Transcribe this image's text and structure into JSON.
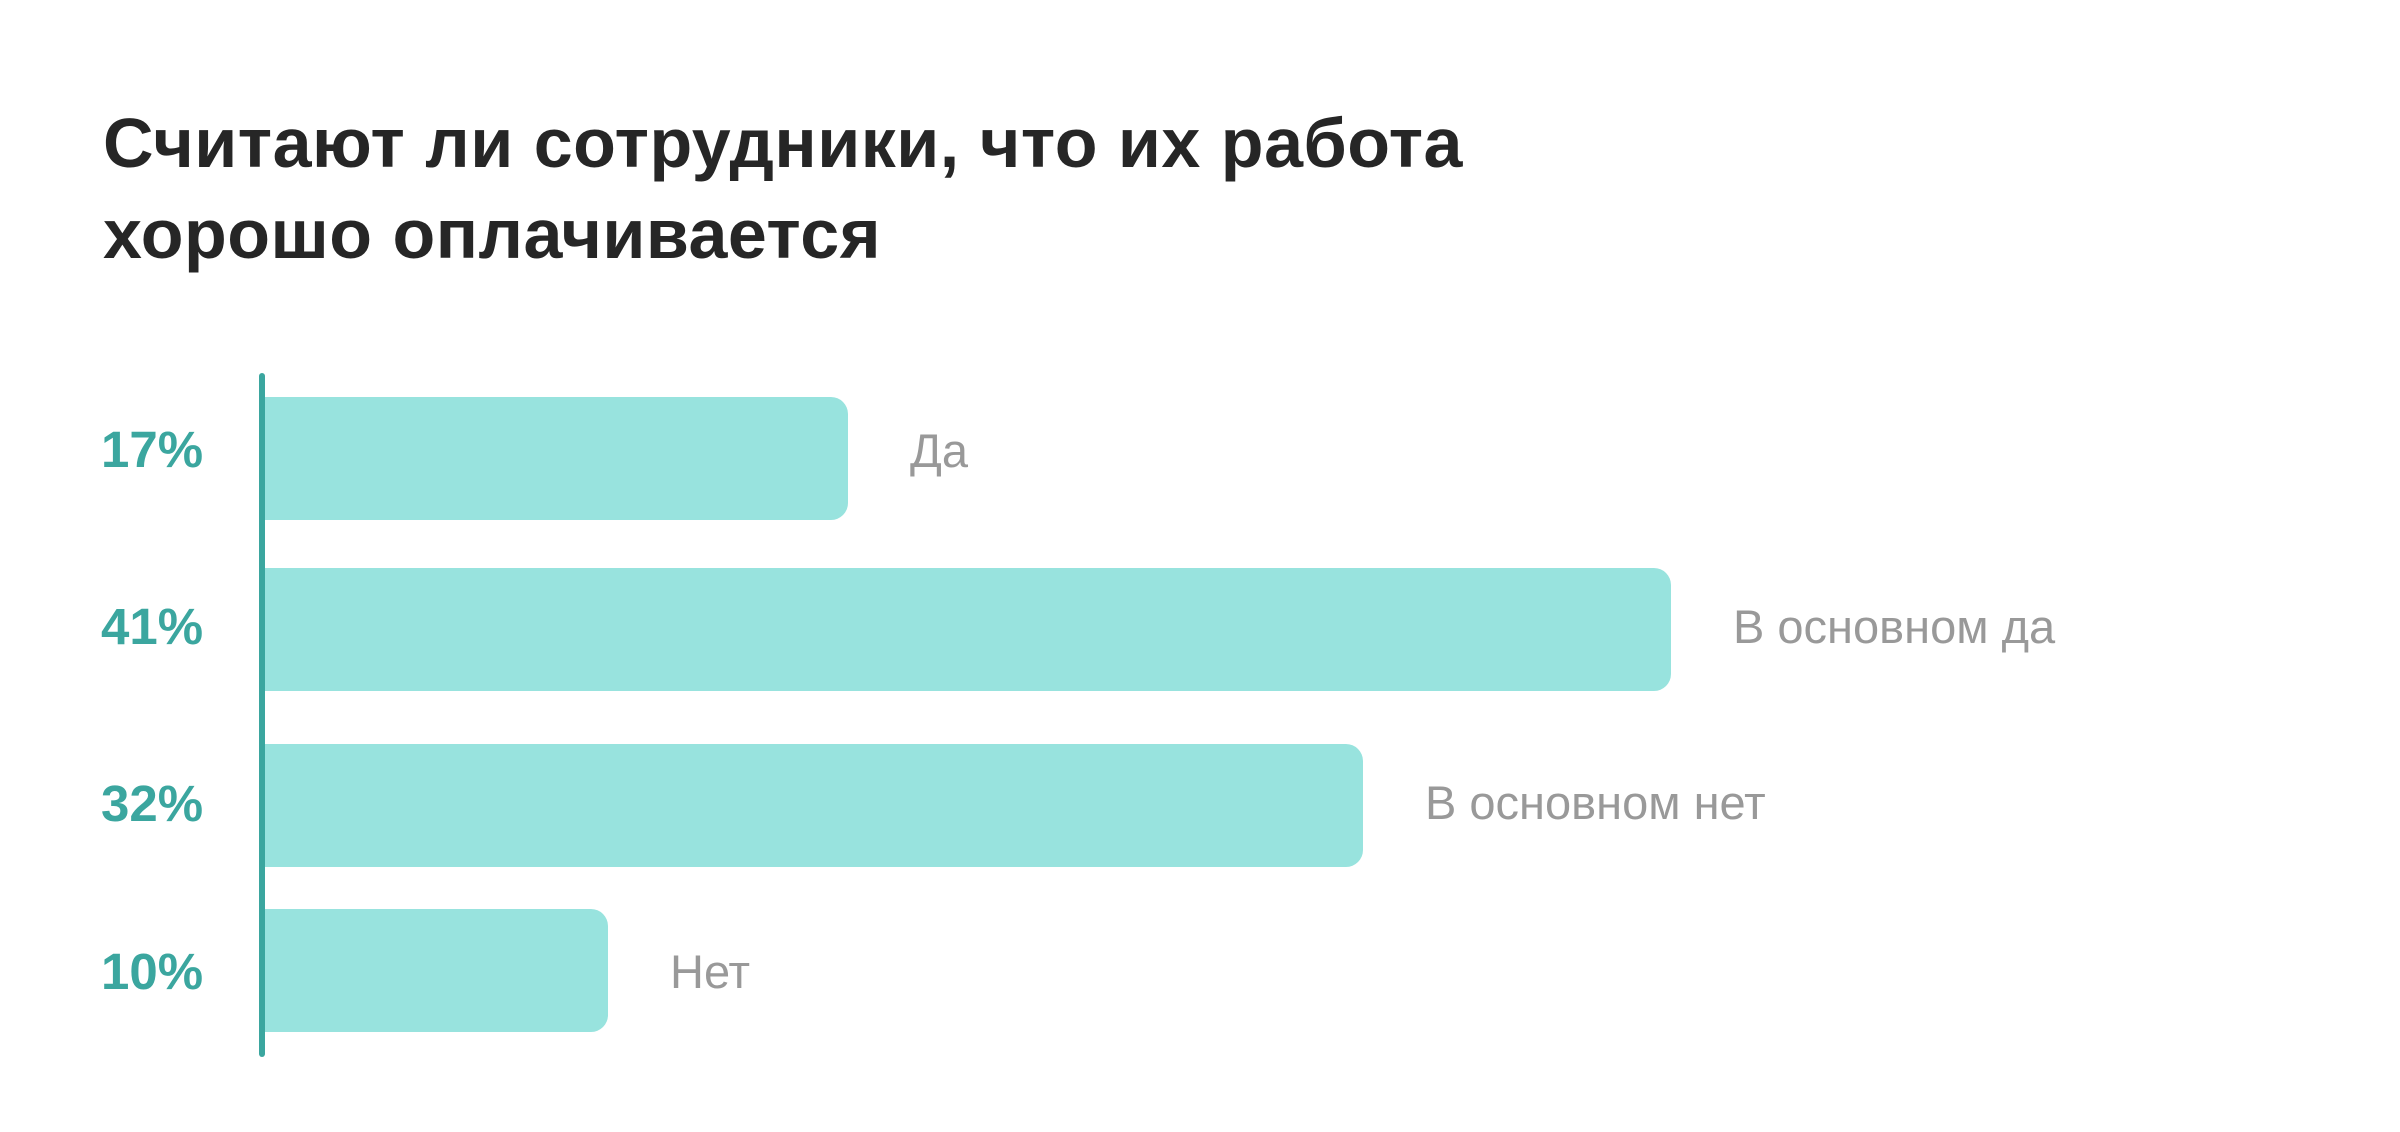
{
  "title": {
    "line1": "Считают ли сотрудники, что их работа",
    "line2": "хорошо оплачивается"
  },
  "colors": {
    "title": "#262626",
    "bar": "#98e3de",
    "axis": "#3ba69f",
    "percent": "#3ba69f",
    "category": "#999999"
  },
  "chart_data": {
    "type": "bar",
    "orientation": "horizontal",
    "title": "Считают ли сотрудники, что их работа хорошо оплачивается",
    "categories": [
      "Да",
      "В основном да",
      "В основном нет",
      "Нет"
    ],
    "values": [
      17,
      41,
      32,
      10
    ],
    "value_labels": [
      "17%",
      "41%",
      "32%",
      "10%"
    ],
    "unit": "%",
    "xlabel": "",
    "ylabel": "",
    "xlim": [
      0,
      100
    ],
    "grid": false,
    "legend": null
  },
  "bars": [
    {
      "label": "Да",
      "percent": "17%",
      "value": 17
    },
    {
      "label": "В основном да",
      "percent": "41%",
      "value": 41
    },
    {
      "label": "В основном нет",
      "percent": "32%",
      "value": 32
    },
    {
      "label": "Нет",
      "percent": "10%",
      "value": 10
    }
  ]
}
